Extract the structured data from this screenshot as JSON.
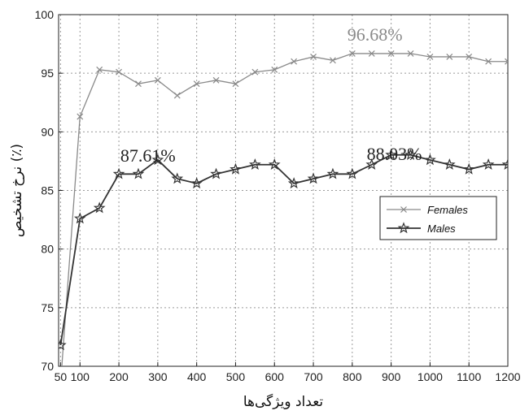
{
  "chart_data": {
    "type": "line",
    "title": "",
    "xlabel": "تعداد ویژگی‌ها",
    "ylabel": "نرخ تشخیص (٪)",
    "xlim": [
      45,
      1200
    ],
    "ylim": [
      70,
      100
    ],
    "xticks": [
      50,
      100,
      200,
      300,
      400,
      500,
      600,
      700,
      800,
      900,
      1000,
      1100,
      1200
    ],
    "yticks": [
      70,
      75,
      80,
      85,
      90,
      95,
      100
    ],
    "grid": true,
    "legend_position": "middle-right",
    "series": [
      {
        "name": "Females",
        "marker": "x",
        "color": "#8a8a8a",
        "x": [
          50,
          100,
          150,
          200,
          250,
          300,
          350,
          400,
          450,
          500,
          550,
          600,
          650,
          700,
          750,
          800,
          850,
          900,
          950,
          1000,
          1050,
          1100,
          1150,
          1200
        ],
        "y": [
          68.5,
          91.3,
          95.3,
          95.1,
          94.1,
          94.4,
          93.1,
          94.1,
          94.4,
          94.1,
          95.1,
          95.3,
          96.0,
          96.4,
          96.1,
          96.68,
          96.68,
          96.68,
          96.68,
          96.4,
          96.4,
          96.4,
          96.0,
          96.0
        ]
      },
      {
        "name": "Males",
        "marker": "star",
        "color": "#333333",
        "x": [
          50,
          100,
          150,
          200,
          250,
          300,
          350,
          400,
          450,
          500,
          550,
          600,
          650,
          700,
          750,
          800,
          850,
          900,
          950,
          1000,
          1050,
          1100,
          1150,
          1200
        ],
        "y": [
          71.8,
          82.6,
          83.5,
          86.4,
          86.4,
          87.61,
          86.0,
          85.6,
          86.4,
          86.8,
          87.2,
          87.2,
          85.6,
          86.0,
          86.4,
          86.4,
          87.2,
          88.03,
          88.03,
          87.6,
          87.2,
          86.8,
          87.2,
          87.2
        ]
      }
    ],
    "annotations": [
      {
        "text": "96.68%",
        "x": 850,
        "y": 96.68,
        "color": "#8a8a8a"
      },
      {
        "text": "87.61%",
        "x": 300,
        "y": 87.61,
        "color": "#222222"
      },
      {
        "text": "88.03%",
        "x": 900,
        "y": 88.03,
        "color": "#222222"
      }
    ]
  }
}
